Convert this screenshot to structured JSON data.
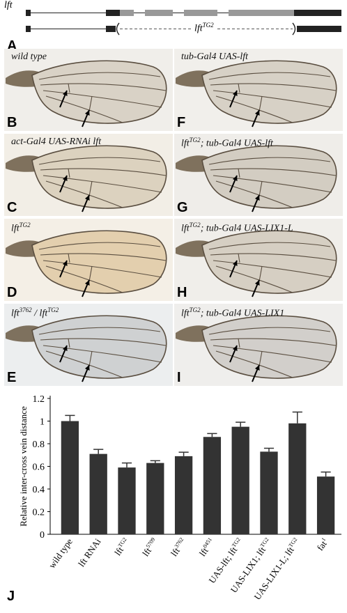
{
  "panel_a": {
    "letter": "A",
    "gene_label": "lft",
    "deletion_label_base": "lft",
    "deletion_label_sup": "TG2"
  },
  "wing_panels": [
    {
      "id": "B",
      "letter": "B",
      "label_parts": [
        {
          "t": "wild type"
        }
      ],
      "tone": "#d9d2c6",
      "bg": "#f0eeea"
    },
    {
      "id": "F",
      "letter": "F",
      "label_parts": [
        {
          "t": "tub-Gal4 UAS-lft"
        }
      ],
      "tone": "#d7d1c6",
      "bg": "#f1efeb"
    },
    {
      "id": "C",
      "letter": "C",
      "label_parts": [
        {
          "t": "act-Gal4 UAS-RNAi lft"
        }
      ],
      "tone": "#dcd2bf",
      "bg": "#f2eee6"
    },
    {
      "id": "G",
      "letter": "G",
      "label_parts": [
        {
          "t": "lft"
        },
        {
          "sup": "TG2"
        },
        {
          "t": "; tub-Gal4 UAS-lft"
        }
      ],
      "tone": "#d3cdc2",
      "bg": "#efede9"
    },
    {
      "id": "D",
      "letter": "D",
      "label_parts": [
        {
          "t": "lft"
        },
        {
          "sup": "TG2"
        }
      ],
      "tone": "#e3cfae",
      "bg": "#f4efe6"
    },
    {
      "id": "H",
      "letter": "H",
      "label_parts": [
        {
          "t": "lft"
        },
        {
          "sup": "TG2"
        },
        {
          "t": "; tub-Gal4 UAS-LIX1-L"
        }
      ],
      "tone": "#d6cfc3",
      "bg": "#f0eeea"
    },
    {
      "id": "E",
      "letter": "E",
      "label_parts": [
        {
          "t": "lft"
        },
        {
          "sup": "3762"
        },
        {
          "t": " / lft"
        },
        {
          "sup": "TG2"
        }
      ],
      "tone": "#cfd1d2",
      "bg": "#eceeef"
    },
    {
      "id": "I",
      "letter": "I",
      "label_parts": [
        {
          "t": "lft"
        },
        {
          "sup": "TG2"
        },
        {
          "t": "; tub-Gal4 UAS-LIX1"
        }
      ],
      "tone": "#d2cfcb",
      "bg": "#efeeec"
    }
  ],
  "chart_data": {
    "type": "bar",
    "panel_letter": "J",
    "ylabel": "Relative inter-cross vein distance",
    "ylim": [
      0,
      1.2
    ],
    "yticks": [
      "0",
      "0.2",
      "0.4",
      "0.6",
      "0.8",
      "1",
      "1.2"
    ],
    "categories": [
      {
        "base": "wild type",
        "sup": ""
      },
      {
        "base": "lft RNAi",
        "sup": ""
      },
      {
        "base": "lft",
        "sup": "TG2"
      },
      {
        "base": "lft",
        "sup": "5709"
      },
      {
        "base": "lft",
        "sup": "3762"
      },
      {
        "base": "lft",
        "sup": "0451"
      },
      {
        "base": "UAS-lft; lft",
        "sup": "TG2"
      },
      {
        "base": "UAS-LIX1; lft",
        "sup": "TG2"
      },
      {
        "base": "UAS-LIX1-L; lft",
        "sup": "TG2"
      },
      {
        "base": "fat",
        "sup": "1"
      }
    ],
    "values": [
      1.0,
      0.71,
      0.59,
      0.63,
      0.69,
      0.86,
      0.95,
      0.73,
      0.98,
      0.51
    ],
    "errors": [
      0.05,
      0.04,
      0.04,
      0.02,
      0.035,
      0.03,
      0.04,
      0.03,
      0.1,
      0.04
    ],
    "bar_color": "#333333"
  }
}
